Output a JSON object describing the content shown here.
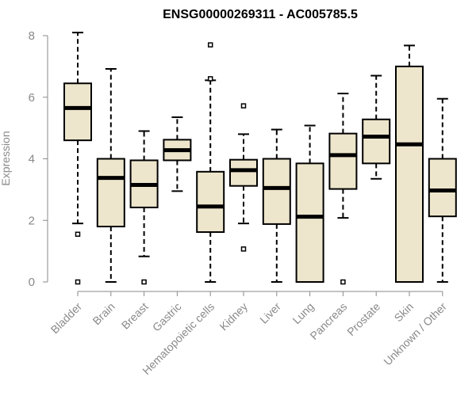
{
  "chart_data": {
    "type": "boxplot",
    "title": "ENSG00000269311 - AC005785.5",
    "xlabel": "",
    "ylabel": "Expression",
    "ylim": [
      0,
      8
    ],
    "yticks": [
      0,
      2,
      4,
      6,
      8
    ],
    "grid": false,
    "categories": [
      "Bladder",
      "Brain",
      "Breast",
      "Gastric",
      "Hematopoietic cells",
      "Kidney",
      "Liver",
      "Lung",
      "Pancreas",
      "Prostate",
      "Skin",
      "Unknown / Other"
    ],
    "boxes": [
      {
        "name": "Bladder",
        "whisker_low": 1.9,
        "q1": 4.6,
        "median": 5.65,
        "q3": 6.45,
        "whisker_high": 8.1,
        "outliers": [
          1.55,
          0.0
        ]
      },
      {
        "name": "Brain",
        "whisker_low": 0.0,
        "q1": 1.8,
        "median": 3.38,
        "q3": 4.0,
        "whisker_high": 6.92,
        "outliers": []
      },
      {
        "name": "Breast",
        "whisker_low": 0.83,
        "q1": 2.42,
        "median": 3.15,
        "q3": 3.95,
        "whisker_high": 4.9,
        "outliers": [
          0.0
        ]
      },
      {
        "name": "Gastric",
        "whisker_low": 2.95,
        "q1": 3.95,
        "median": 4.28,
        "q3": 4.62,
        "whisker_high": 5.35,
        "outliers": []
      },
      {
        "name": "Hematopoietic cells",
        "whisker_low": 0.0,
        "q1": 1.62,
        "median": 2.45,
        "q3": 3.58,
        "whisker_high": 6.55,
        "outliers": [
          7.7,
          6.6
        ]
      },
      {
        "name": "Kidney",
        "whisker_low": 1.9,
        "q1": 3.12,
        "median": 3.63,
        "q3": 3.97,
        "whisker_high": 4.8,
        "outliers": [
          5.72,
          1.07
        ]
      },
      {
        "name": "Liver",
        "whisker_low": 0.0,
        "q1": 1.88,
        "median": 3.05,
        "q3": 4.0,
        "whisker_high": 4.95,
        "outliers": []
      },
      {
        "name": "Lung",
        "whisker_low": 0.0,
        "q1": 0.0,
        "median": 2.12,
        "q3": 3.85,
        "whisker_high": 5.08,
        "outliers": []
      },
      {
        "name": "Pancreas",
        "whisker_low": 2.08,
        "q1": 3.02,
        "median": 4.12,
        "q3": 4.82,
        "whisker_high": 6.12,
        "outliers": [
          0.0
        ]
      },
      {
        "name": "Prostate",
        "whisker_low": 3.35,
        "q1": 3.85,
        "median": 4.72,
        "q3": 5.28,
        "whisker_high": 6.7,
        "outliers": []
      },
      {
        "name": "Skin",
        "whisker_low": 0.0,
        "q1": 0.0,
        "median": 4.47,
        "q3": 7.0,
        "whisker_high": 7.68,
        "outliers": []
      },
      {
        "name": "Unknown / Other",
        "whisker_low": 0.0,
        "q1": 2.13,
        "median": 2.97,
        "q3": 4.0,
        "whisker_high": 5.95,
        "outliers": []
      }
    ]
  }
}
